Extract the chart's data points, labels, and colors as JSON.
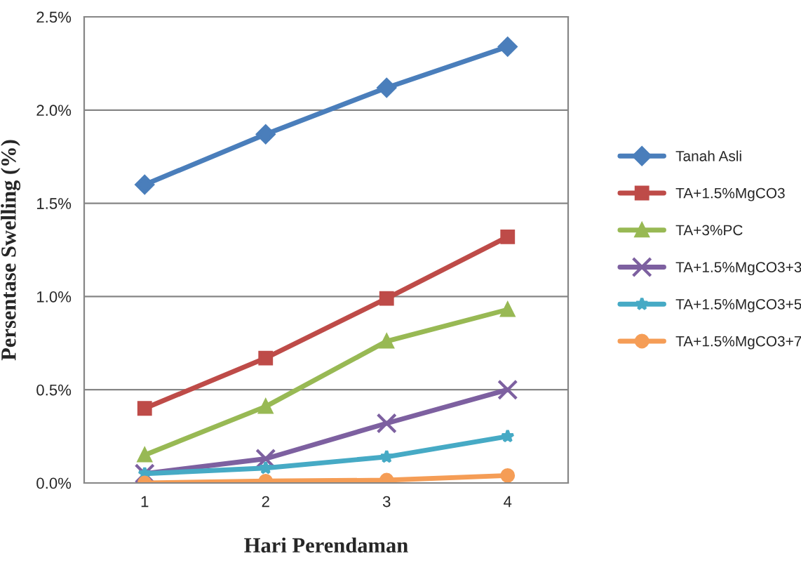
{
  "chart_data": {
    "type": "line",
    "xlabel": "Hari Perendaman",
    "ylabel": "Persentase Swelling (%)",
    "categories": [
      "1",
      "2",
      "3",
      "4"
    ],
    "series": [
      {
        "name": "Tanah Asli",
        "color": "#4a7ebb",
        "marker": "diamond",
        "values": [
          1.6,
          1.87,
          2.12,
          2.34
        ]
      },
      {
        "name": "TA+1.5%MgCO3",
        "color": "#be4b48",
        "marker": "square",
        "values": [
          0.4,
          0.67,
          0.99,
          1.32
        ]
      },
      {
        "name": "TA+3%PC",
        "color": "#98b954",
        "marker": "triangle",
        "values": [
          0.15,
          0.41,
          0.76,
          0.93
        ]
      },
      {
        "name": "TA+1.5%MgCO3+3",
        "color": "#7d60a0",
        "marker": "cross",
        "values": [
          0.05,
          0.13,
          0.32,
          0.5
        ]
      },
      {
        "name": "TA+1.5%MgCO3+5",
        "color": "#46aac5",
        "marker": "star",
        "values": [
          0.05,
          0.08,
          0.14,
          0.25
        ]
      },
      {
        "name": "TA+1.5%MgCO3+7",
        "color": "#f59d56",
        "marker": "circle",
        "values": [
          0.0,
          0.01,
          0.015,
          0.04
        ]
      }
    ],
    "ylim": [
      0,
      2.5
    ],
    "yticks": [
      {
        "value": 0,
        "label": "0.0%"
      },
      {
        "value": 0.5,
        "label": "0.5%"
      },
      {
        "value": 1.0,
        "label": "1.0%"
      },
      {
        "value": 1.5,
        "label": "1.5%"
      },
      {
        "value": 2.0,
        "label": "2.0%"
      },
      {
        "value": 2.5,
        "label": "2.5%"
      }
    ],
    "grid": "y",
    "legend": "right",
    "line_style": "solid"
  }
}
